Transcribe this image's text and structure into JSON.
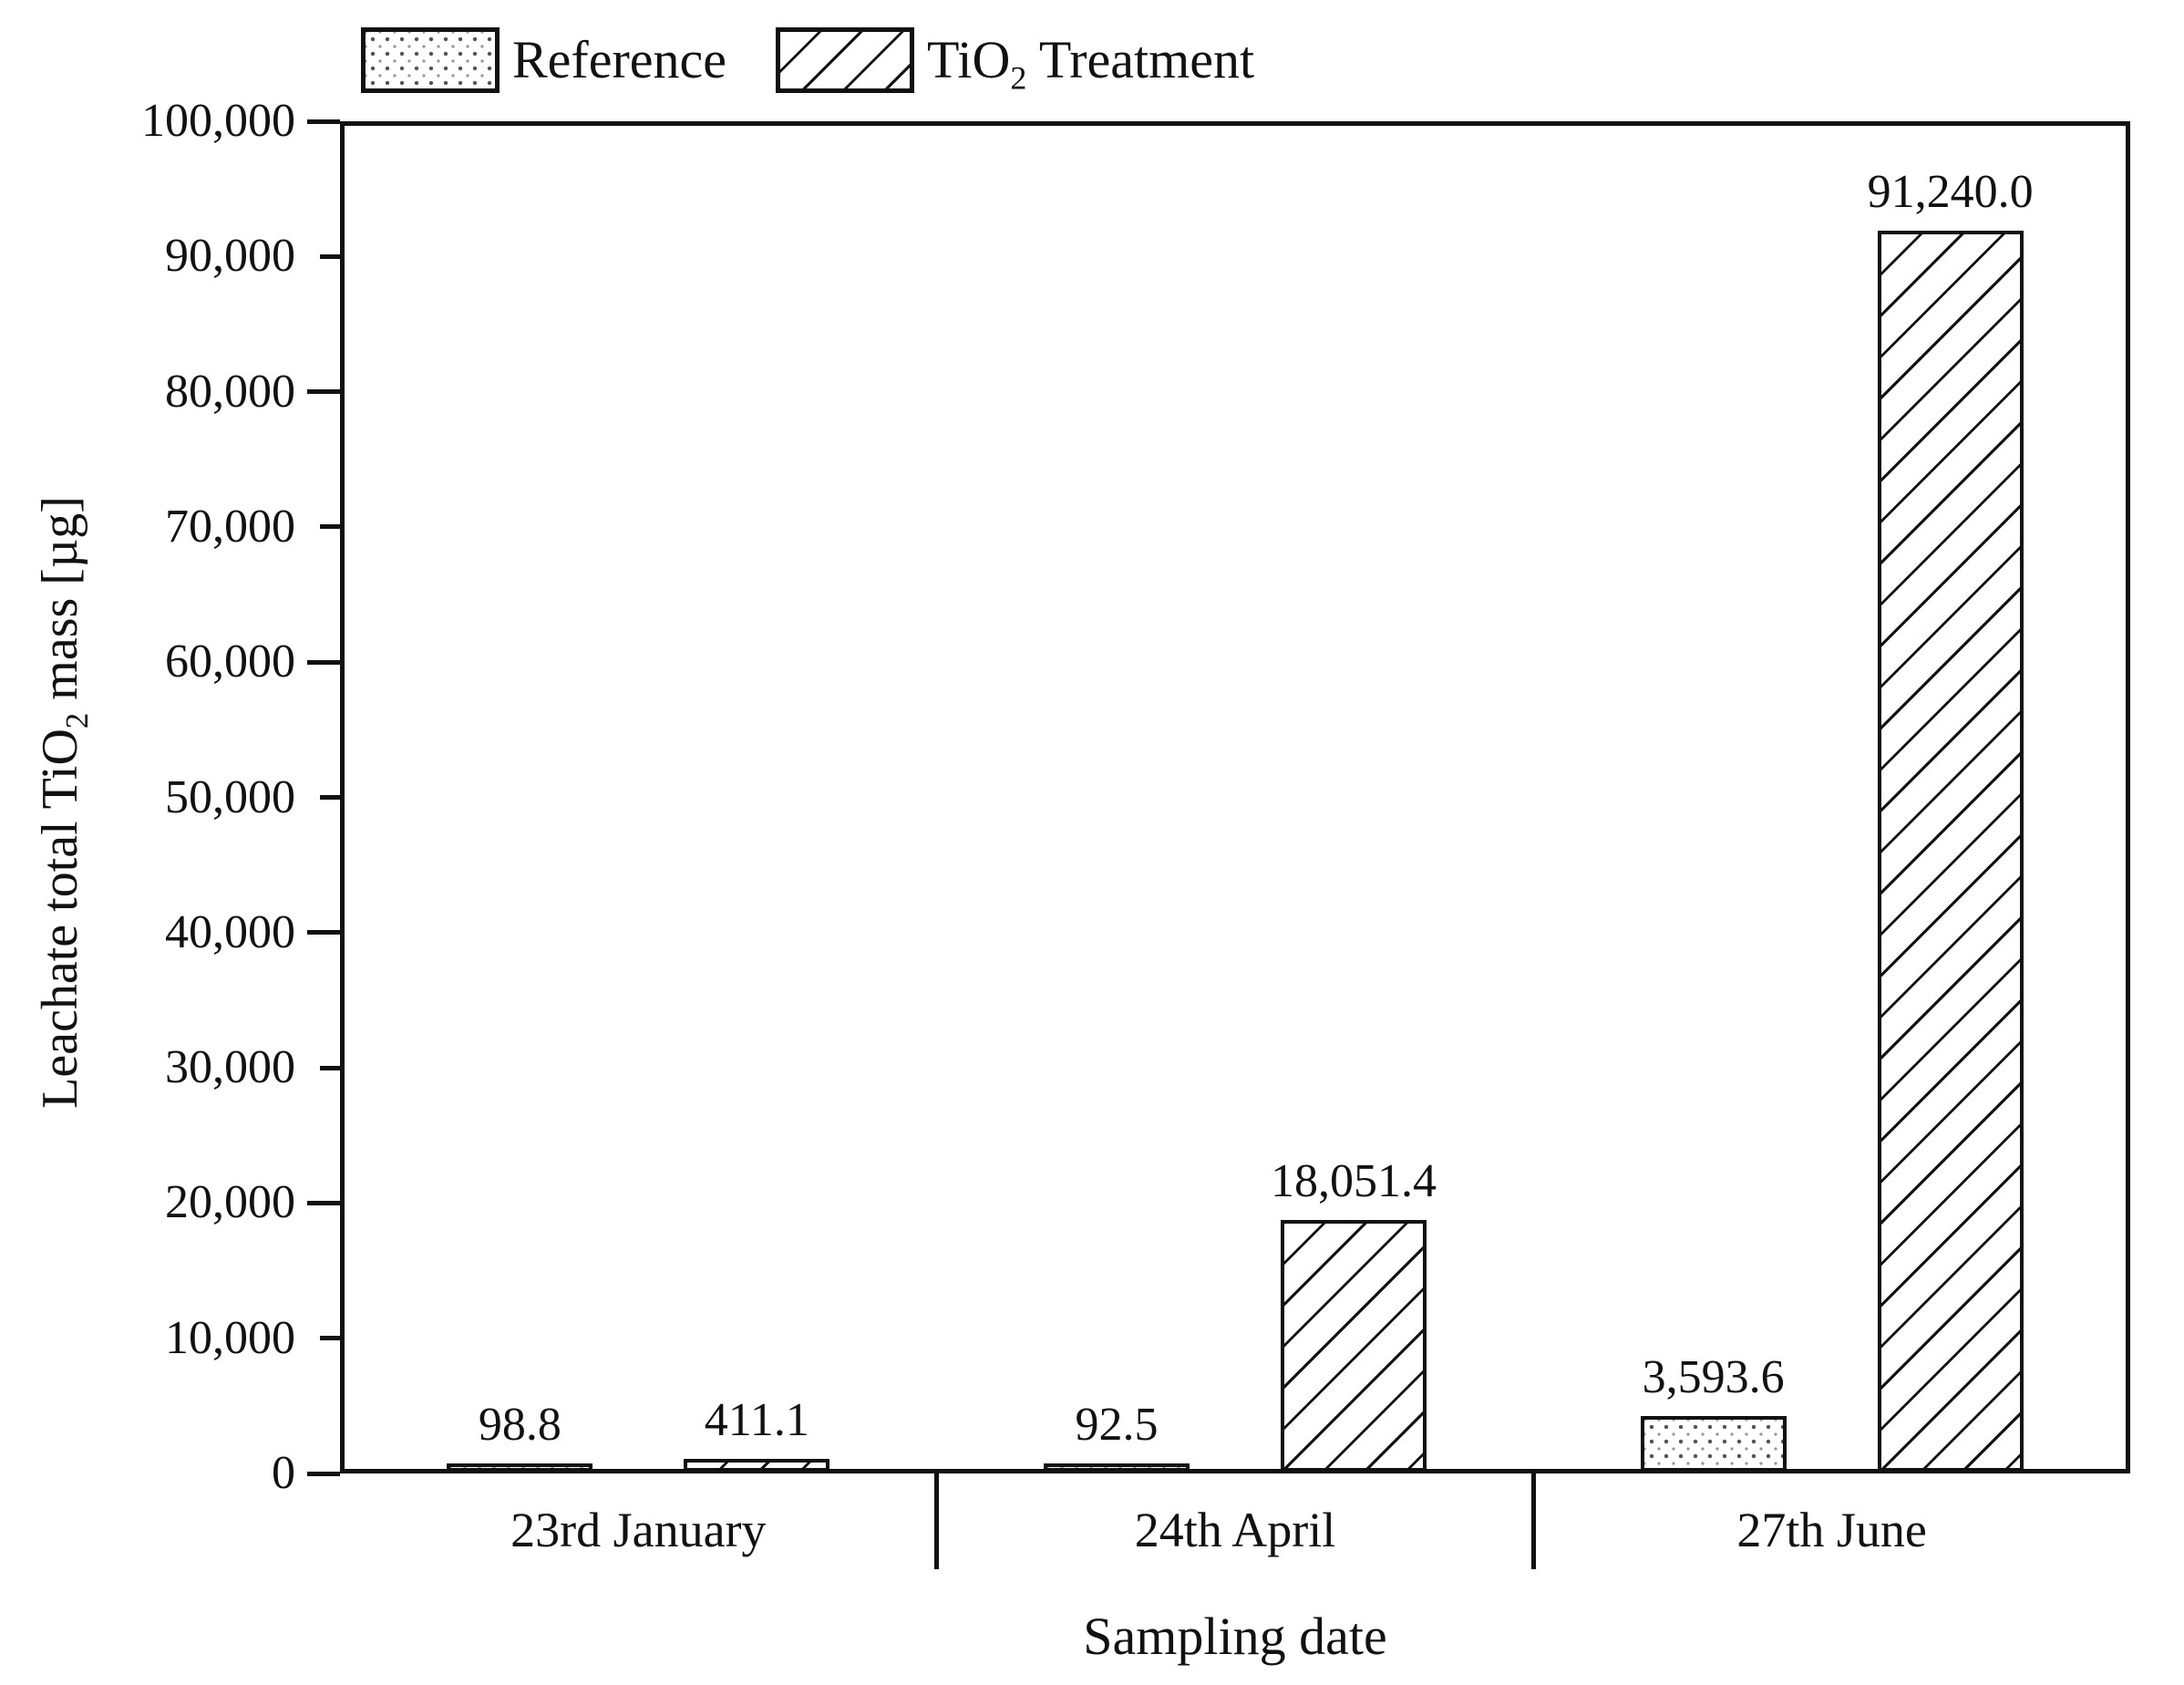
{
  "chart_data": {
    "type": "bar",
    "title": "",
    "xlabel": "Sampling date",
    "ylabel": "Leachate total TiO2 mass [ug]",
    "ylabel_parts": {
      "pre": "Leachate total TiO",
      "sub": "2",
      "post": " mass [µg]"
    },
    "categories": [
      "23rd January",
      "24th April",
      "27th June"
    ],
    "series": [
      {
        "name": "Reference",
        "name_parts": {
          "pre": "Reference",
          "sub": "",
          "post": ""
        },
        "pattern": "dots",
        "values": [
          98.8,
          92.5,
          3593.6
        ],
        "labels": [
          "98.8",
          "92.5",
          "3,593.6"
        ]
      },
      {
        "name": "TiO2 Treatment",
        "name_parts": {
          "pre": "TiO",
          "sub": "2",
          "post": " Treatment"
        },
        "pattern": "hatch",
        "values": [
          411.1,
          18051.4,
          91240.0
        ],
        "labels": [
          "411.1",
          "18,051.4",
          "91,240.0"
        ]
      }
    ],
    "ylim": [
      0,
      100000
    ],
    "yticks": [
      {
        "v": 0,
        "label": "0"
      },
      {
        "v": 10000,
        "label": "10,000"
      },
      {
        "v": 20000,
        "label": "20,000"
      },
      {
        "v": 30000,
        "label": "30,000"
      },
      {
        "v": 40000,
        "label": "40,000"
      },
      {
        "v": 50000,
        "label": "50,000"
      },
      {
        "v": 60000,
        "label": "60,000"
      },
      {
        "v": 70000,
        "label": "70,000"
      },
      {
        "v": 80000,
        "label": "80,000"
      },
      {
        "v": 90000,
        "label": "90,000"
      },
      {
        "v": 100000,
        "label": "100,000"
      }
    ],
    "grid": false,
    "legend_position": "top-left",
    "colors": {
      "ink": "#111111",
      "background": "#ffffff",
      "dot": "#777777"
    }
  }
}
